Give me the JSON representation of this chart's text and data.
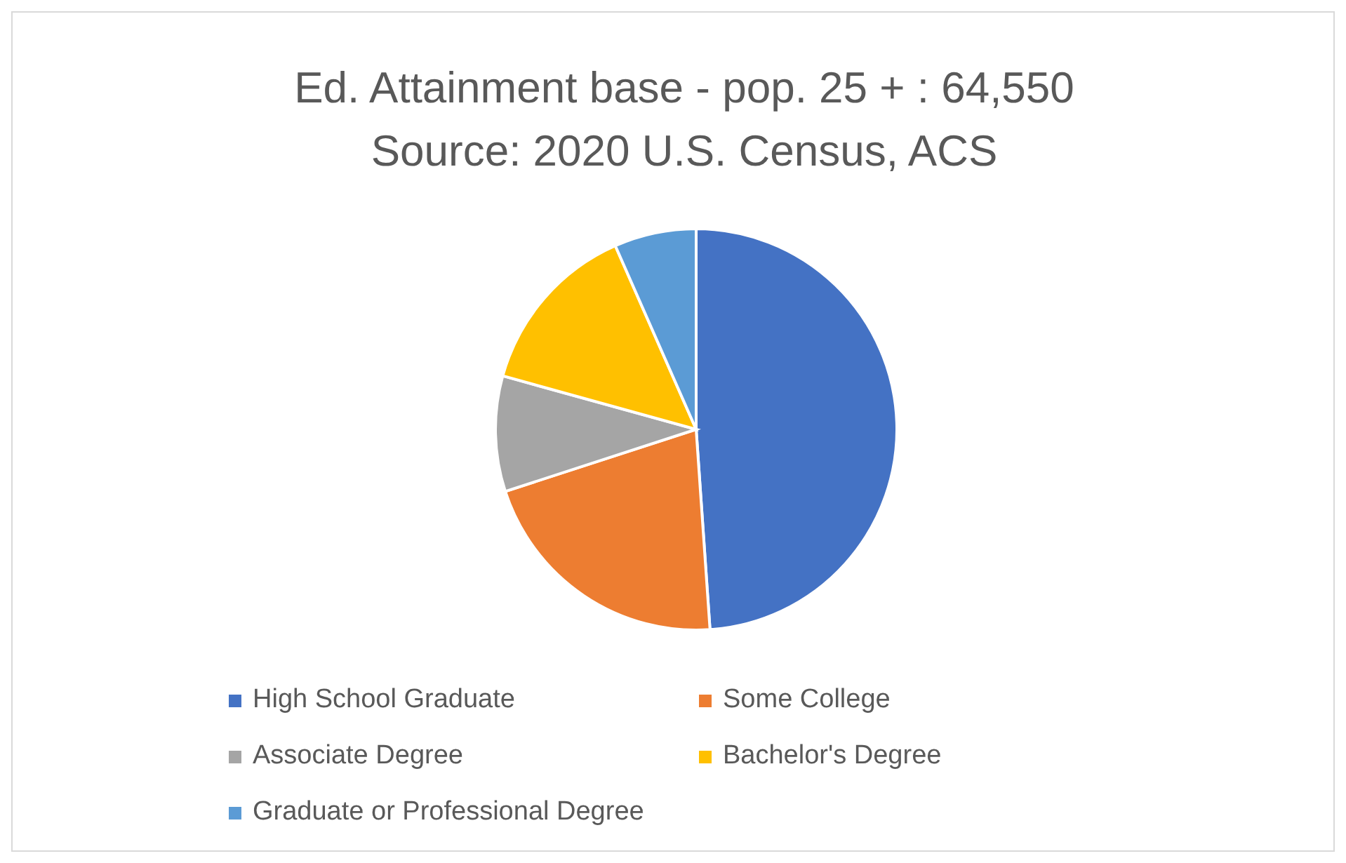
{
  "chart_data": {
    "type": "pie",
    "title": "Ed. Attainment base - pop. 25 + : 64,550",
    "subtitle": "Source: 2020 U.S. Census, ACS",
    "categories": [
      "High School Graduate",
      "Some College",
      "Associate Degree",
      "Bachelor's Degree",
      "Graduate or Professional Degree"
    ],
    "values": [
      48.9,
      21.1,
      9.3,
      14.1,
      6.6
    ],
    "colors": [
      "#4472c4",
      "#ed7d31",
      "#a5a5a5",
      "#ffc000",
      "#5b9bd5"
    ],
    "legend": "bottom"
  }
}
